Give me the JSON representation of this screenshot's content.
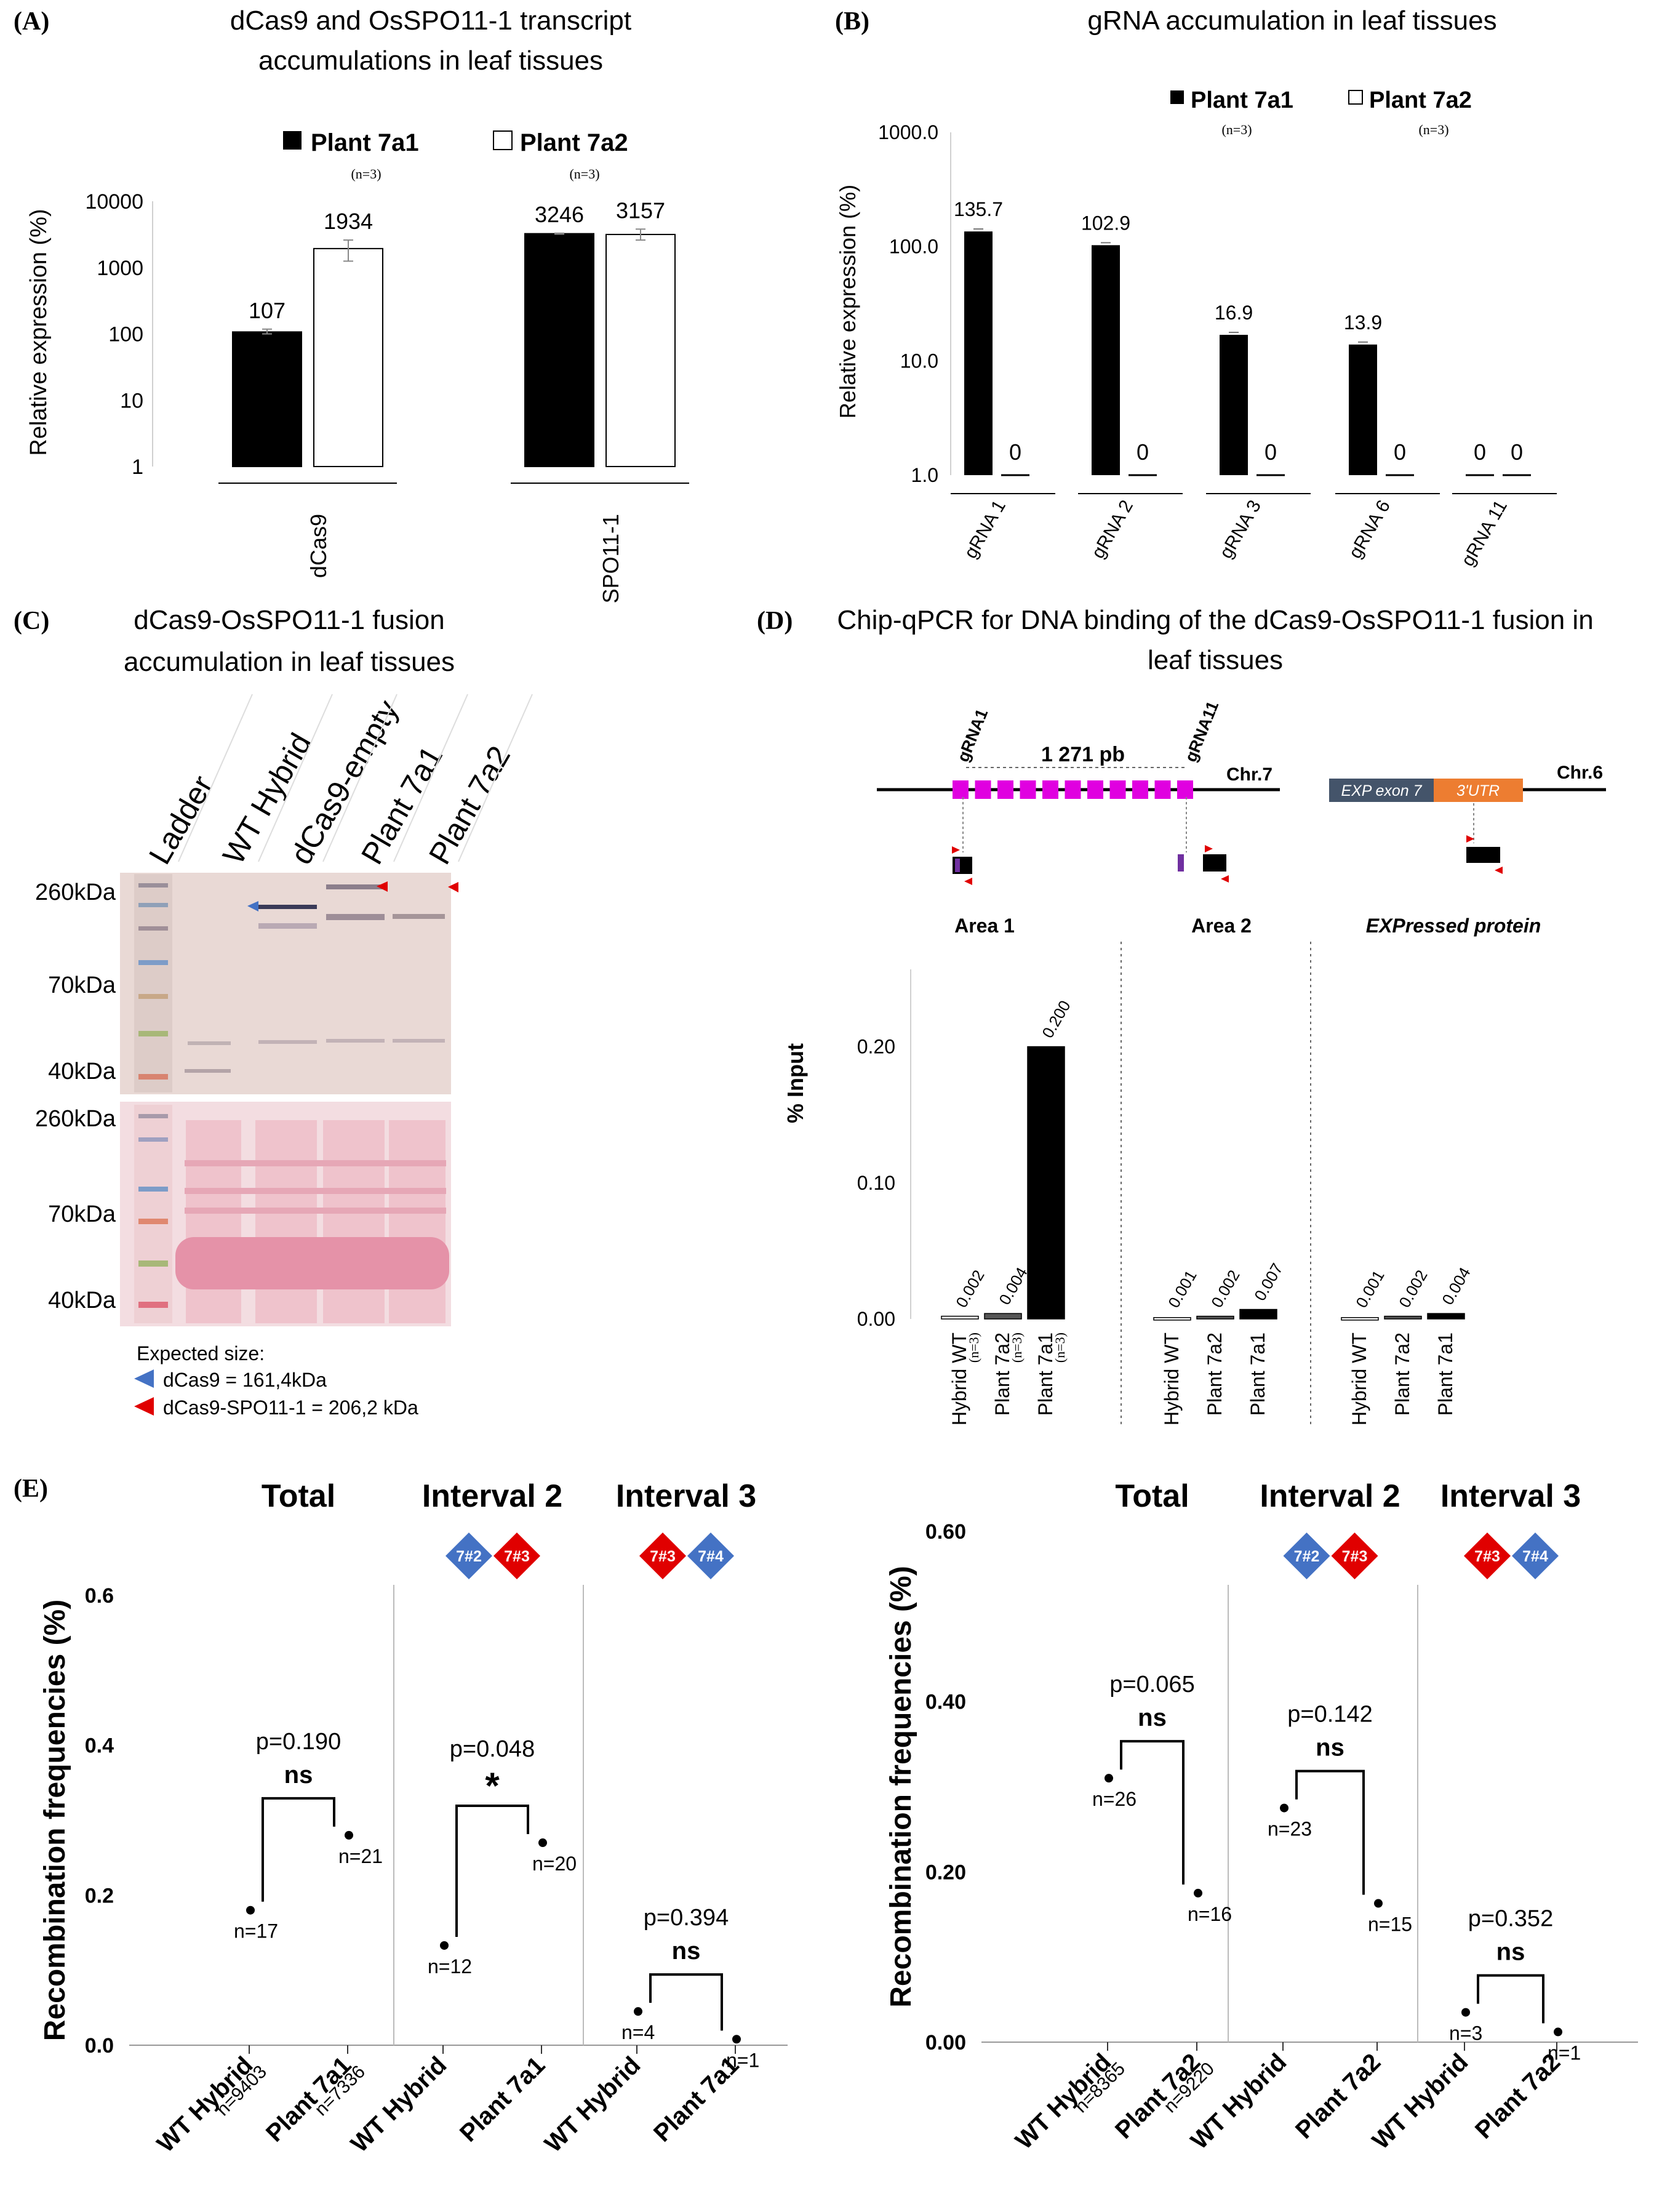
{
  "panels": {
    "A": {
      "letter": "(A)",
      "title_lines": [
        "dCas9 and OsSPO11-1 transcript",
        "accumulations in leaf tissues"
      ],
      "legend": [
        {
          "label": "Plant 7a1",
          "n": "(n=3)",
          "fill": "#000000"
        },
        {
          "label": "Plant 7a2",
          "n": "(n=3)",
          "fill": "#ffffff"
        }
      ]
    },
    "B": {
      "letter": "(B)",
      "title_lines": [
        "gRNA accumulation in leaf tissues"
      ],
      "legend": [
        {
          "label": "Plant 7a1",
          "n": "(n=3)",
          "fill": "#000000"
        },
        {
          "label": "Plant 7a2",
          "n": "(n=3)",
          "fill": "#ffffff"
        }
      ]
    },
    "C": {
      "letter": "(C)",
      "title_lines": [
        "dCas9-OsSPO11-1 fusion",
        "accumulation in leaf tissues"
      ],
      "lanes": [
        "Ladder",
        "WT Hybrid",
        "dCas9-empty",
        "Plant 7a1",
        "Plant 7a2"
      ],
      "top_markers": [
        "260kDa",
        "70kDa",
        "40kDa"
      ],
      "bottom_markers": [
        "260kDa",
        "70kDa",
        "40kDa"
      ],
      "legend_title": "Expected size:",
      "legend": [
        {
          "label": "dCas9 = 161,4kDa",
          "color": "#4472c4"
        },
        {
          "label": "dCas9-SPO11-1 = 206,2 kDa",
          "color": "#e00000"
        }
      ]
    },
    "D": {
      "letter": "(D)",
      "title_lines": [
        "Chip-qPCR for DNA binding of the dCas9-OsSPO11-1 fusion in",
        "leaf tissues"
      ],
      "schematic": {
        "grna1": "gRNA1",
        "grna11": "gRNA11",
        "distance": "1 271 pb",
        "chr7": "Chr.7",
        "chr6": "Chr.6",
        "exon": "EXP exon 7",
        "utr": "3'UTR",
        "areas": [
          "Area 1",
          "Area 2",
          "EXPressed protein"
        ]
      }
    },
    "E": {
      "letter": "(E)",
      "group_titles": [
        "Total",
        "Interval 2",
        "Interval 3"
      ],
      "ns_label": "ns",
      "star_label": "*"
    }
  },
  "chart_data": [
    {
      "id": "A",
      "type": "bar",
      "ylabel": "Relative expression (%)",
      "yscale": "log",
      "ylim": [
        1,
        10000
      ],
      "yticks": [
        "10000",
        "1000",
        "100",
        "10",
        "1"
      ],
      "categories": [
        "dCas9",
        "SPO11-1"
      ],
      "series": [
        {
          "name": "Plant 7a1",
          "values": [
            107,
            3246
          ],
          "labels": [
            "107",
            "3246"
          ],
          "err_hi": [
            118,
            3300
          ],
          "err_lo": [
            100,
            3200
          ]
        },
        {
          "name": "Plant 7a2",
          "values": [
            1934,
            3157
          ],
          "labels": [
            "1934",
            "3157"
          ],
          "err_hi": [
            2600,
            3800
          ],
          "err_lo": [
            1250,
            2600
          ]
        }
      ]
    },
    {
      "id": "B",
      "type": "bar",
      "ylabel": "Relative expression (%)",
      "yscale": "log",
      "ylim": [
        1,
        1000
      ],
      "yticks": [
        "1000.0",
        "100.0",
        "10.0",
        "1.0"
      ],
      "categories": [
        "gRNA 1",
        "gRNA 2",
        "gRNA 3",
        "gRNA 6",
        "gRNA 11"
      ],
      "series": [
        {
          "name": "Plant 7a1",
          "values": [
            135.7,
            102.9,
            16.9,
            13.9,
            0
          ],
          "labels": [
            "135.7",
            "102.9",
            "16.9",
            "13.9",
            "0"
          ]
        },
        {
          "name": "Plant 7a2",
          "values": [
            0,
            0,
            0,
            0,
            0
          ],
          "labels": [
            "0",
            "0",
            "0",
            "0",
            "0"
          ]
        }
      ]
    },
    {
      "id": "D",
      "type": "bar",
      "ylabel": "% Input",
      "ylim": [
        0,
        0.25
      ],
      "yticks": [
        0.0,
        0.1,
        0.2
      ],
      "ytick_labels": [
        "0.00",
        "0.10",
        "0.20"
      ],
      "groups": [
        {
          "name": "Area 1",
          "bars": [
            {
              "label": "Hybrid WT",
              "n": "(n=3)",
              "value": 0.002,
              "value_label": "0.002",
              "fill": "#ffffff"
            },
            {
              "label": "Plant 7a2",
              "n": "(n=3)",
              "value": 0.004,
              "value_label": "0.004",
              "fill": "#555555"
            },
            {
              "label": "Plant 7a1",
              "n": "(n=3)",
              "value": 0.2,
              "value_label": "0.200",
              "fill": "#000000"
            }
          ]
        },
        {
          "name": "Area 2",
          "bars": [
            {
              "label": "Hybrid WT",
              "n": "",
              "value": 0.001,
              "value_label": "0.001",
              "fill": "#ffffff"
            },
            {
              "label": "Plant 7a2",
              "n": "",
              "value": 0.002,
              "value_label": "0.002",
              "fill": "#555555"
            },
            {
              "label": "Plant 7a1",
              "n": "",
              "value": 0.007,
              "value_label": "0.007",
              "fill": "#000000"
            }
          ]
        },
        {
          "name": "EXPressed protein",
          "bars": [
            {
              "label": "Hybrid WT",
              "n": "",
              "value": 0.001,
              "value_label": "0.001",
              "fill": "#ffffff"
            },
            {
              "label": "Plant 7a2",
              "n": "",
              "value": 0.002,
              "value_label": "0.002",
              "fill": "#555555"
            },
            {
              "label": "Plant 7a1",
              "n": "",
              "value": 0.004,
              "value_label": "0.004",
              "fill": "#000000"
            }
          ]
        }
      ]
    },
    {
      "id": "E-left",
      "type": "scatter",
      "ylabel": "Recombination frequencies (%)",
      "ylim": [
        0,
        0.6
      ],
      "yticks": [
        "0.0",
        "0.2",
        "0.4",
        "0.6"
      ],
      "xticks": [
        {
          "label": "WT Hybrid",
          "sub": "n=9403"
        },
        {
          "label": "Plant 7a1",
          "sub": "n=7336"
        },
        {
          "label": "WT Hybrid",
          "sub": ""
        },
        {
          "label": "Plant 7a1",
          "sub": ""
        },
        {
          "label": "WT Hybrid",
          "sub": ""
        },
        {
          "label": "Plant 7a1",
          "sub": ""
        }
      ],
      "groups": [
        {
          "title": "Total",
          "markers": [],
          "p": "p=0.190",
          "sig": "ns",
          "points": [
            {
              "y": 0.18,
              "n": "n=17"
            },
            {
              "y": 0.28,
              "n": "n=21"
            }
          ]
        },
        {
          "title": "Interval 2",
          "markers": [
            {
              "label": "7#2",
              "color": "#4472c4"
            },
            {
              "label": "7#3",
              "color": "#e00000"
            }
          ],
          "p": "p=0.048",
          "sig": "*",
          "points": [
            {
              "y": 0.133,
              "n": "n=12"
            },
            {
              "y": 0.27,
              "n": "n=20"
            }
          ]
        },
        {
          "title": "Interval 3",
          "markers": [
            {
              "label": "7#3",
              "color": "#e00000"
            },
            {
              "label": "7#4",
              "color": "#4472c4"
            }
          ],
          "p": "p=0.394",
          "sig": "ns",
          "points": [
            {
              "y": 0.045,
              "n": "n=4"
            },
            {
              "y": 0.008,
              "n": "n=1"
            }
          ]
        }
      ]
    },
    {
      "id": "E-right",
      "type": "scatter",
      "ylabel": "Recombination frequencies (%)",
      "ylim": [
        0,
        0.6
      ],
      "yticks": [
        "0.00",
        "0.20",
        "0.40",
        "0.60"
      ],
      "xticks": [
        {
          "label": "WT Hybrid",
          "sub": "n=8365"
        },
        {
          "label": "Plant 7a2",
          "sub": "n=9220"
        },
        {
          "label": "WT Hybrid",
          "sub": ""
        },
        {
          "label": "Plant 7a2",
          "sub": ""
        },
        {
          "label": "WT Hybrid",
          "sub": ""
        },
        {
          "label": "Plant 7a2",
          "sub": ""
        }
      ],
      "groups": [
        {
          "title": "Total",
          "markers": [],
          "p": "p=0.065",
          "sig": "ns",
          "points": [
            {
              "y": 0.31,
              "n": "n=26"
            },
            {
              "y": 0.175,
              "n": "n=16"
            }
          ]
        },
        {
          "title": "Interval 2",
          "markers": [
            {
              "label": "7#2",
              "color": "#4472c4"
            },
            {
              "label": "7#3",
              "color": "#e00000"
            }
          ],
          "p": "p=0.142",
          "sig": "ns",
          "points": [
            {
              "y": 0.275,
              "n": "n=23"
            },
            {
              "y": 0.163,
              "n": "n=15"
            }
          ]
        },
        {
          "title": "Interval 3",
          "markers": [
            {
              "label": "7#3",
              "color": "#e00000"
            },
            {
              "label": "7#4",
              "color": "#4472c4"
            }
          ],
          "p": "p=0.352",
          "sig": "ns",
          "points": [
            {
              "y": 0.035,
              "n": "n=3"
            },
            {
              "y": 0.012,
              "n": "n=1"
            }
          ]
        }
      ]
    }
  ]
}
